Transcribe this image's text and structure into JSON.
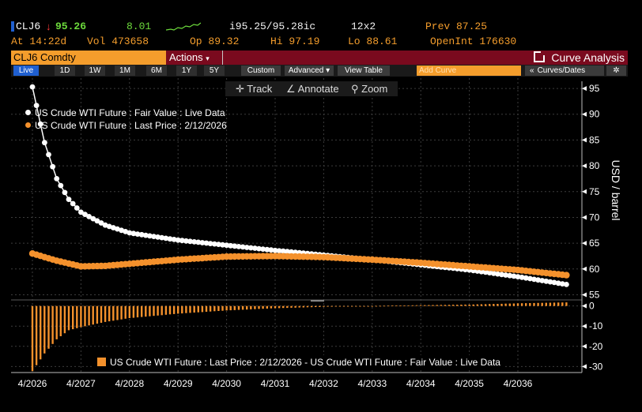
{
  "header": {
    "ticker": "CLJ6",
    "last": "95.26",
    "change": "8.01",
    "bidask": "i95.25/95.28ic",
    "size": "12x2",
    "prev": "Prev 87.25",
    "time": "At 14:22d",
    "vol": "Vol 473658",
    "open": "Op 89.32",
    "high": "Hi 97.19",
    "low": "Lo 88.61",
    "openint": "OpenInt 176630",
    "colors": {
      "up": "#6ddb3c",
      "down": "#ff3b3b",
      "amber": "#f49d2c"
    }
  },
  "command": {
    "security": "CLJ6 Comdty",
    "actions": "Actions",
    "title": "Curve Analysis"
  },
  "tabs": [
    "Live",
    "1D",
    "1W",
    "1M",
    "6M",
    "1Y",
    "5Y"
  ],
  "buttons": {
    "custom": "Custom",
    "advanced": "Advanced",
    "view_table": "View Table",
    "add_curve_placeholder": "Add Curve",
    "curves_dates": "Curves/Dates"
  },
  "toolbar": {
    "track": "Track",
    "annotate": "Annotate",
    "zoom": "Zoom"
  },
  "chart_data": [
    {
      "type": "line",
      "x_unit": "years from 4/2026",
      "x_ticks": [
        "4/2026",
        "4/2027",
        "4/2028",
        "4/2029",
        "4/2030",
        "4/2031",
        "4/2032",
        "4/2033",
        "4/2034",
        "4/2035",
        "4/2036"
      ],
      "ylabel": "USD / barrel",
      "ylim": [
        54,
        97
      ],
      "yticks": [
        55,
        60,
        65,
        70,
        75,
        80,
        85,
        90,
        95
      ],
      "legend_position": "top-left",
      "series": [
        {
          "name": "US Crude WTI Future : Fair Value : Live Data",
          "color": "#ffffff",
          "x": [
            0,
            0.25,
            0.5,
            0.75,
            1,
            1.5,
            2,
            3,
            4,
            5,
            6,
            7,
            8,
            9,
            10,
            11
          ],
          "y": [
            95.3,
            84.5,
            77.5,
            73.5,
            71.0,
            68.5,
            67.0,
            65.6,
            64.6,
            63.6,
            62.7,
            61.8,
            60.8,
            59.8,
            58.5,
            57.0
          ]
        },
        {
          "name": "US Crude WTI Future : Last Price : 2/12/2026",
          "color": "#f4912c",
          "x": [
            0,
            0.5,
            1,
            1.5,
            2,
            3,
            4,
            5,
            6,
            7,
            8,
            9,
            10,
            11
          ],
          "y": [
            63.0,
            61.6,
            60.5,
            60.6,
            61.0,
            61.8,
            62.4,
            62.5,
            62.3,
            61.8,
            61.2,
            60.5,
            59.8,
            58.8
          ]
        }
      ]
    },
    {
      "type": "bar",
      "ylim": [
        -33,
        3
      ],
      "yticks": [
        0,
        -10,
        -20,
        -30
      ],
      "legend_position": "bottom",
      "series": [
        {
          "name": "US Crude WTI Future : Last Price : 2/12/2026 - US Crude WTI Future : Fair Value : Live Data",
          "color": "#f4912c",
          "x": [
            0,
            0.25,
            0.5,
            0.75,
            1,
            1.5,
            2,
            3,
            4,
            5,
            6,
            7,
            8,
            9,
            10,
            11
          ],
          "y": [
            -32.3,
            -23.5,
            -16.5,
            -12.0,
            -10.5,
            -7.9,
            -6.0,
            -3.8,
            -2.2,
            -1.1,
            -0.4,
            0.0,
            0.4,
            0.7,
            1.3,
            1.8
          ]
        }
      ]
    }
  ]
}
